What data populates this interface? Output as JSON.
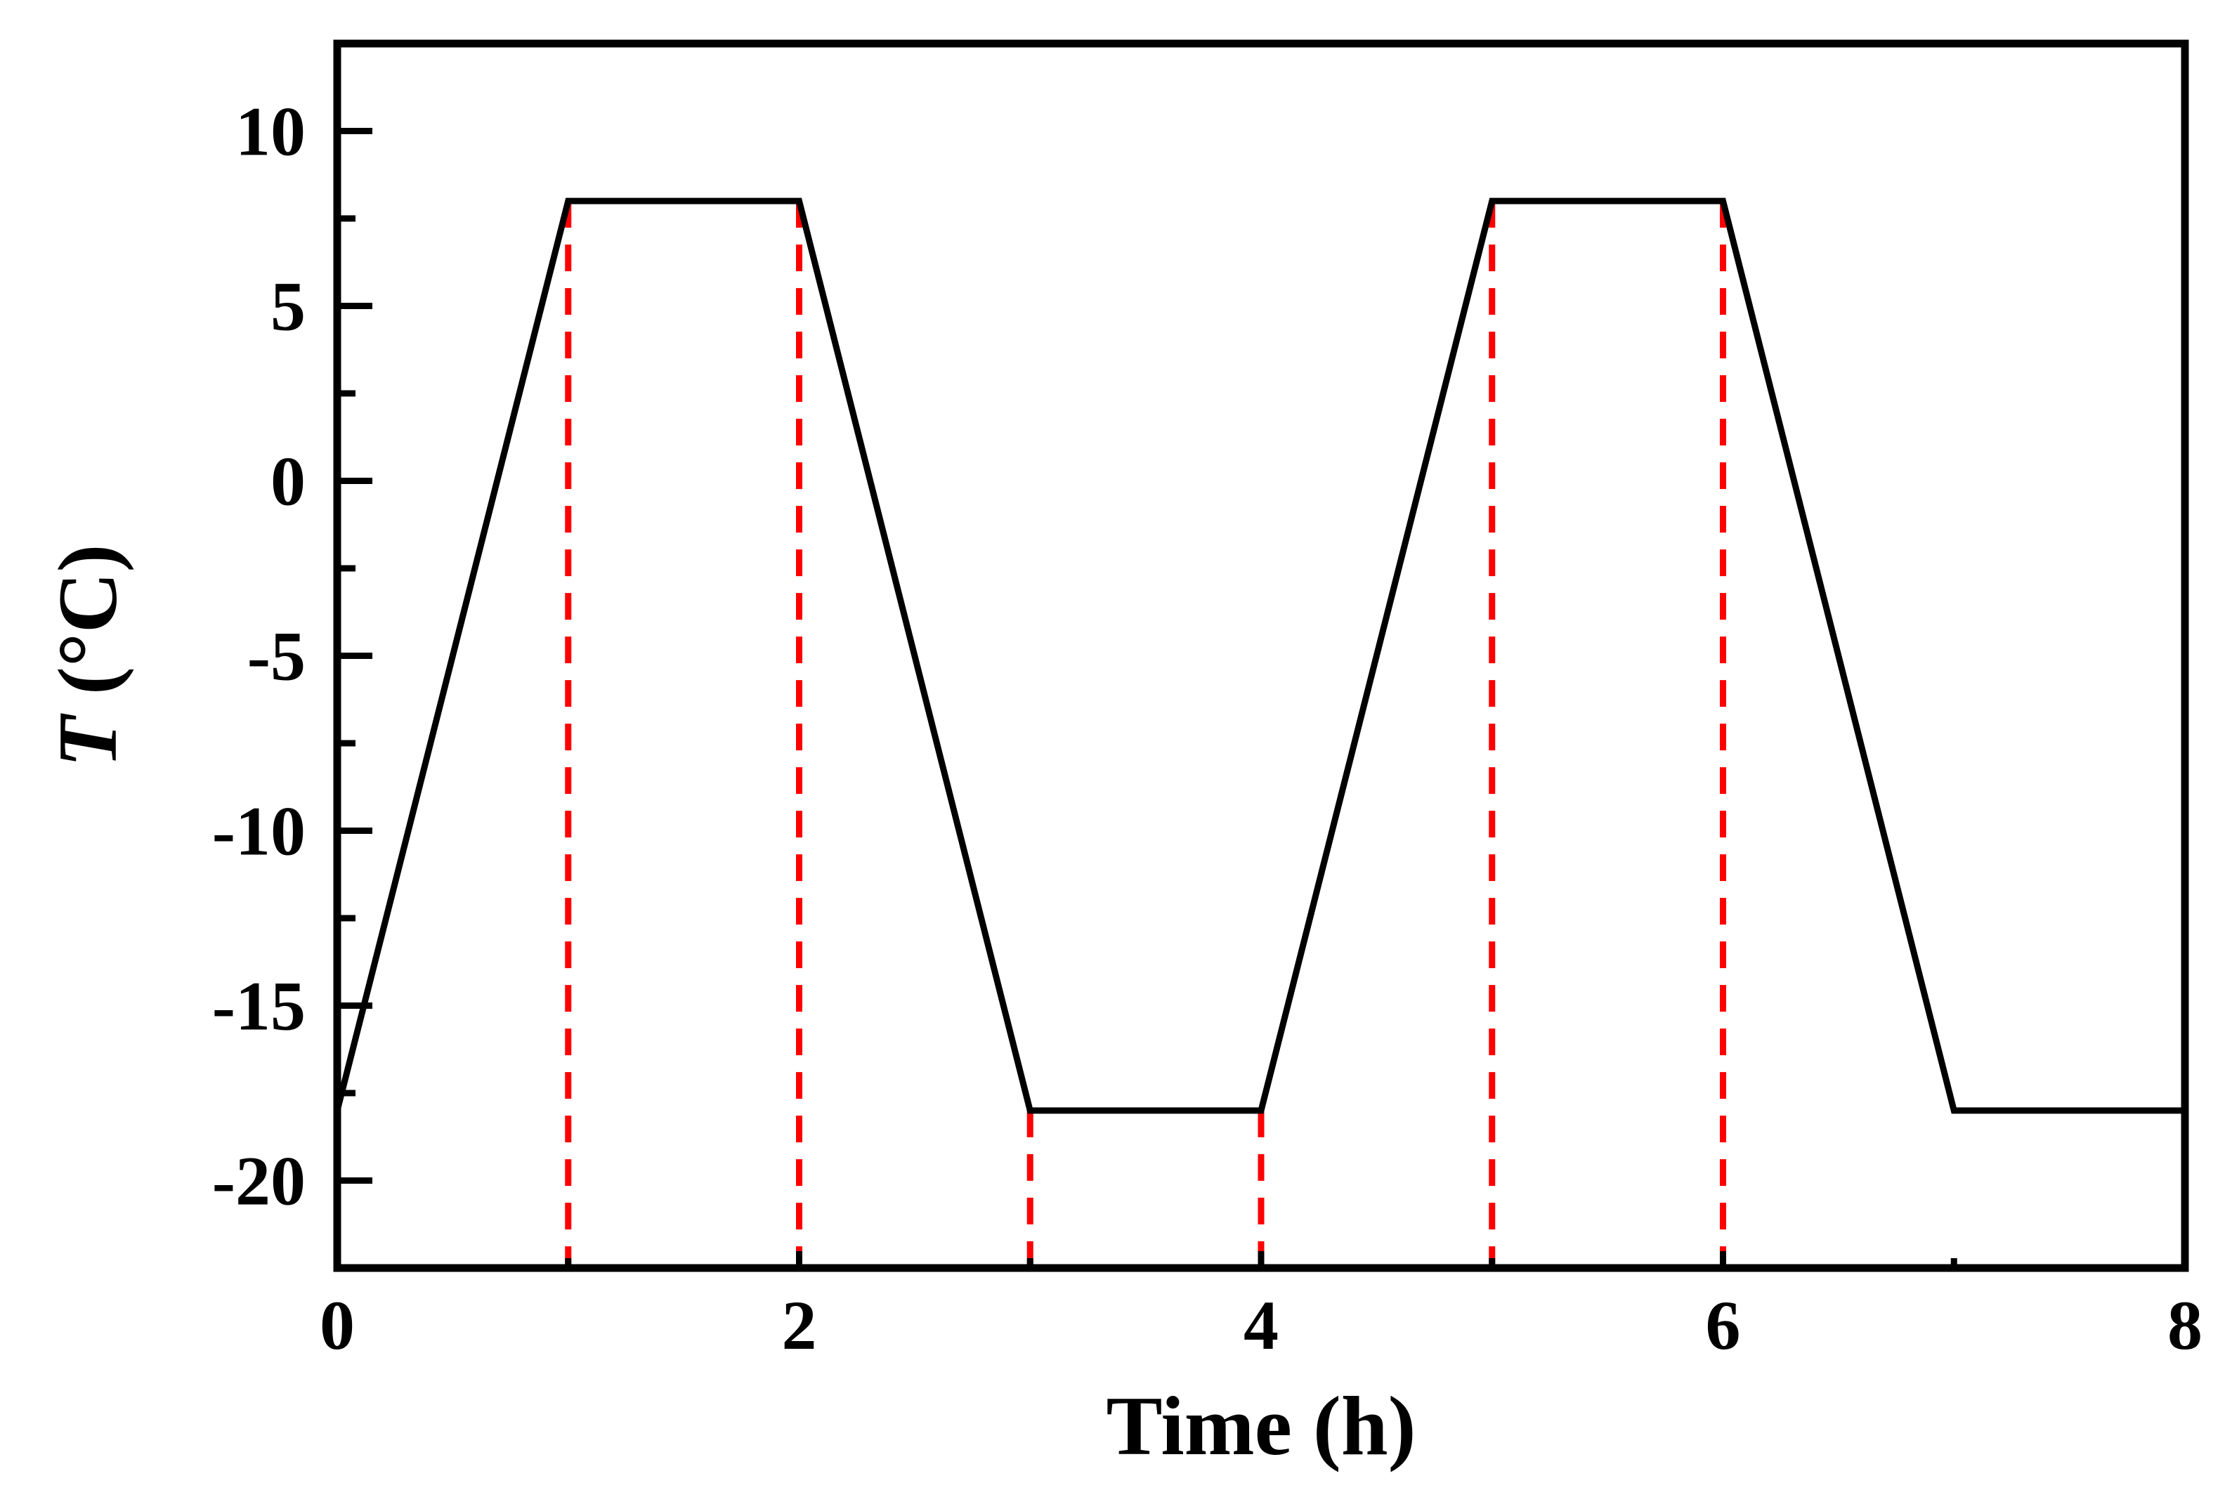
{
  "chart_data": {
    "type": "line",
    "title": "",
    "xlabel": "Time (h)",
    "ylabel": {
      "symbol": "T",
      "unit": " (°C)"
    },
    "xlim": [
      0,
      8
    ],
    "ylim": [
      -22.5,
      12.5
    ],
    "x_ticks": [
      0,
      2,
      4,
      6,
      8
    ],
    "x_tick_labels": [
      "0",
      "2",
      "4",
      "6",
      "8"
    ],
    "x_minor_ticks": [
      1,
      3,
      5,
      7
    ],
    "y_ticks": [
      10,
      5,
      0,
      -5,
      -10,
      -15,
      -20
    ],
    "y_tick_labels": [
      "10",
      "5",
      "0",
      "-5",
      "-10",
      "-15",
      "-20"
    ],
    "y_minor_ticks": [
      7.5,
      2.5,
      -2.5,
      -7.5,
      -12.5,
      -17.5
    ],
    "grid": false,
    "legend": "none",
    "series": [
      {
        "x": [
          0,
          1,
          2,
          3,
          4,
          5,
          6,
          7,
          8
        ],
        "y": [
          -18,
          8,
          8,
          -18,
          -18,
          8,
          8,
          -18,
          -18
        ],
        "color": "#000000",
        "style": "solid"
      }
    ],
    "reference_lines": {
      "orientation": "vertical",
      "color": "#ff0000",
      "style": "dashed",
      "lines": [
        {
          "x": 1,
          "y_top": 8
        },
        {
          "x": 2,
          "y_top": 8
        },
        {
          "x": 3,
          "y_top": -18
        },
        {
          "x": 4,
          "y_top": -18
        },
        {
          "x": 5,
          "y_top": 8
        },
        {
          "x": 6,
          "y_top": 8
        }
      ]
    }
  }
}
